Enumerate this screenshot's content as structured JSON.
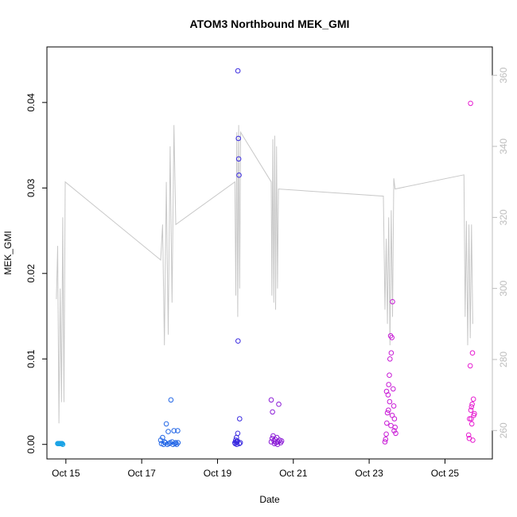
{
  "chart_data": {
    "type": "scatter",
    "title": "ATOM3 Northbound MEK_GMI",
    "xlabel": "Date",
    "ylabel": "MEK_GMI",
    "xlim": [
      "2016-10-14 12:00",
      "2016-10-26 06:00"
    ],
    "ylim": [
      -0.0017,
      0.0465
    ],
    "y2lim": [
      252,
      368
    ],
    "x_ticks": [
      {
        "label": "Oct 15",
        "value": "2016-10-15"
      },
      {
        "label": "Oct 17",
        "value": "2016-10-17"
      },
      {
        "label": "Oct 19",
        "value": "2016-10-19"
      },
      {
        "label": "Oct 21",
        "value": "2016-10-21"
      },
      {
        "label": "Oct 23",
        "value": "2016-10-23"
      },
      {
        "label": "Oct 25",
        "value": "2016-10-25"
      }
    ],
    "y_ticks": [
      "0.00",
      "0.01",
      "0.02",
      "0.03",
      "0.04"
    ],
    "y2_ticks": [
      "260",
      "280",
      "300",
      "320",
      "340",
      "360"
    ],
    "grid": false,
    "legend": "none",
    "colors": {
      "line": "#c8c8c8",
      "axis_right": "#bdbdbd"
    },
    "series": [
      {
        "color": "#1aa3e6",
        "points": [
          [
            "2016-10-14 18:48",
            0.0001
          ],
          [
            "2016-10-14 19:12",
            0.0001
          ],
          [
            "2016-10-14 19:36",
            0.0001
          ],
          [
            "2016-10-14 20:00",
            0.0001
          ],
          [
            "2016-10-14 20:24",
            0.0001
          ],
          [
            "2016-10-14 20:48",
            0.0001
          ],
          [
            "2016-10-14 21:12",
            0.0001
          ],
          [
            "2016-10-14 21:36",
            0.0001
          ],
          [
            "2016-10-14 22:00",
            0.0
          ]
        ]
      },
      {
        "color": "#2266e6",
        "points": [
          [
            "2016-10-17 12:00",
            0.0005
          ],
          [
            "2016-10-17 13:12",
            0.0008
          ],
          [
            "2016-10-17 14:24",
            0.0003
          ],
          [
            "2016-10-17 15:36",
            0.0024
          ],
          [
            "2016-10-17 16:48",
            0.0015
          ],
          [
            "2016-10-17 18:00",
            0.0002
          ],
          [
            "2016-10-17 18:30",
            0.0052
          ],
          [
            "2016-10-17 19:12",
            0.0003
          ],
          [
            "2016-10-17 20:24",
            0.0016
          ],
          [
            "2016-10-17 21:36",
            0.0002
          ],
          [
            "2016-10-17 22:48",
            0.0016
          ],
          [
            "2016-10-17 12:30",
            0.0001
          ],
          [
            "2016-10-17 13:48",
            0.0
          ],
          [
            "2016-10-17 15:00",
            0.0002
          ],
          [
            "2016-10-17 16:12",
            0.0
          ],
          [
            "2016-10-17 17:24",
            0.0001
          ],
          [
            "2016-10-17 19:48",
            0.0
          ],
          [
            "2016-10-17 21:00",
            0.0001
          ],
          [
            "2016-10-17 22:12",
            0.0
          ],
          [
            "2016-10-17 23:00",
            0.0002
          ]
        ]
      },
      {
        "color": "#3a2ae0",
        "points": [
          [
            "2016-10-19 11:00",
            0.0002
          ],
          [
            "2016-10-19 11:30",
            0.0005
          ],
          [
            "2016-10-19 12:00",
            0.0008
          ],
          [
            "2016-10-19 12:24",
            0.0003
          ],
          [
            "2016-10-19 12:48",
            0.0013
          ],
          [
            "2016-10-19 13:00",
            0.0121
          ],
          [
            "2016-10-19 13:12",
            0.0358
          ],
          [
            "2016-10-19 13:24",
            0.0334
          ],
          [
            "2016-10-19 13:36",
            0.0315
          ],
          [
            "2016-10-19 12:54",
            0.0437
          ],
          [
            "2016-10-19 14:00",
            0.003
          ],
          [
            "2016-10-19 14:24",
            0.0002
          ],
          [
            "2016-10-19 11:12",
            0.0001
          ],
          [
            "2016-10-19 11:48",
            0.0003
          ],
          [
            "2016-10-19 12:12",
            0.0
          ],
          [
            "2016-10-19 12:36",
            0.0004
          ],
          [
            "2016-10-19 13:48",
            0.0001
          ]
        ]
      },
      {
        "color": "#8a1ad6",
        "points": [
          [
            "2016-10-20 10:00",
            0.0052
          ],
          [
            "2016-10-20 10:48",
            0.0038
          ],
          [
            "2016-10-20 10:00",
            0.0003
          ],
          [
            "2016-10-20 10:36",
            0.0007
          ],
          [
            "2016-10-20 11:12",
            0.001
          ],
          [
            "2016-10-20 11:48",
            0.0004
          ],
          [
            "2016-10-20 12:24",
            0.0006
          ],
          [
            "2016-10-20 13:00",
            0.0002
          ],
          [
            "2016-10-20 13:36",
            0.0008
          ],
          [
            "2016-10-20 14:12",
            0.0003
          ],
          [
            "2016-10-20 14:48",
            0.0047
          ],
          [
            "2016-10-20 15:24",
            0.0005
          ],
          [
            "2016-10-20 16:00",
            0.0002
          ],
          [
            "2016-10-20 16:36",
            0.0004
          ],
          [
            "2016-10-20 12:00",
            0.0001
          ],
          [
            "2016-10-20 14:00",
            0.0
          ]
        ]
      },
      {
        "color": "#c81ad6",
        "points": [
          [
            "2016-10-23 10:00",
            0.0003
          ],
          [
            "2016-10-23 10:24",
            0.0006
          ],
          [
            "2016-10-23 10:48",
            0.0012
          ],
          [
            "2016-10-23 11:12",
            0.0025
          ],
          [
            "2016-10-23 11:36",
            0.0037
          ],
          [
            "2016-10-23 12:00",
            0.0058
          ],
          [
            "2016-10-23 12:24",
            0.007
          ],
          [
            "2016-10-23 12:48",
            0.0081
          ],
          [
            "2016-10-23 13:12",
            0.01
          ],
          [
            "2016-10-23 13:36",
            0.0127
          ],
          [
            "2016-10-23 14:00",
            0.0107
          ],
          [
            "2016-10-23 14:24",
            0.0125
          ],
          [
            "2016-10-23 14:48",
            0.0167
          ],
          [
            "2016-10-23 15:12",
            0.0065
          ],
          [
            "2016-10-23 15:36",
            0.0045
          ],
          [
            "2016-10-23 16:00",
            0.003
          ],
          [
            "2016-10-23 16:24",
            0.002
          ],
          [
            "2016-10-23 16:48",
            0.0013
          ],
          [
            "2016-10-23 11:00",
            0.0062
          ],
          [
            "2016-10-23 13:00",
            0.005
          ],
          [
            "2016-10-23 14:36",
            0.0034
          ],
          [
            "2016-10-23 15:48",
            0.0016
          ],
          [
            "2016-10-23 12:12",
            0.004
          ],
          [
            "2016-10-23 13:48",
            0.0022
          ]
        ]
      },
      {
        "color": "#e61ad0",
        "points": [
          [
            "2016-10-25 15:00",
            0.0011
          ],
          [
            "2016-10-25 15:36",
            0.003
          ],
          [
            "2016-10-25 16:00",
            0.0092
          ],
          [
            "2016-10-25 16:12",
            0.0399
          ],
          [
            "2016-10-25 16:48",
            0.0044
          ],
          [
            "2016-10-25 17:24",
            0.0107
          ],
          [
            "2016-10-25 18:00",
            0.0053
          ],
          [
            "2016-10-25 18:36",
            0.0036
          ],
          [
            "2016-10-25 15:24",
            0.0007
          ],
          [
            "2016-10-25 16:24",
            0.004
          ],
          [
            "2016-10-25 17:00",
            0.0024
          ],
          [
            "2016-10-25 17:36",
            0.0005
          ],
          [
            "2016-10-25 18:12",
            0.0034
          ],
          [
            "2016-10-25 16:36",
            0.003
          ],
          [
            "2016-10-25 17:12",
            0.0047
          ]
        ]
      }
    ],
    "secondary_line": [
      [
        "2016-10-14 18:00",
        297
      ],
      [
        "2016-10-14 18:48",
        312
      ],
      [
        "2016-10-14 19:36",
        262
      ],
      [
        "2016-10-14 20:24",
        300
      ],
      [
        "2016-10-14 21:12",
        268
      ],
      [
        "2016-10-14 22:00",
        320
      ],
      [
        "2016-10-14 22:48",
        268
      ],
      [
        "2016-10-14 23:36",
        330
      ],
      [
        "2016-10-17 12:00",
        308
      ],
      [
        "2016-10-17 13:12",
        318
      ],
      [
        "2016-10-17 14:24",
        284
      ],
      [
        "2016-10-17 15:36",
        330
      ],
      [
        "2016-10-17 16:48",
        287
      ],
      [
        "2016-10-17 18:00",
        340
      ],
      [
        "2016-10-17 19:12",
        296
      ],
      [
        "2016-10-17 20:24",
        346
      ],
      [
        "2016-10-17 21:36",
        318
      ],
      [
        "2016-10-19 11:00",
        330
      ],
      [
        "2016-10-19 11:36",
        298
      ],
      [
        "2016-10-19 12:12",
        344
      ],
      [
        "2016-10-19 12:48",
        292
      ],
      [
        "2016-10-19 13:24",
        346
      ],
      [
        "2016-10-19 14:00",
        300
      ],
      [
        "2016-10-19 14:36",
        344
      ],
      [
        "2016-10-20 10:00",
        330
      ],
      [
        "2016-10-20 10:24",
        298
      ],
      [
        "2016-10-20 11:00",
        342
      ],
      [
        "2016-10-20 11:36",
        296
      ],
      [
        "2016-10-20 12:12",
        343
      ],
      [
        "2016-10-20 12:48",
        294
      ],
      [
        "2016-10-20 13:24",
        340
      ],
      [
        "2016-10-20 14:00",
        300
      ],
      [
        "2016-10-20 14:36",
        328
      ],
      [
        "2016-10-23 09:00",
        326
      ],
      [
        "2016-10-23 10:00",
        294
      ],
      [
        "2016-10-23 10:48",
        314
      ],
      [
        "2016-10-23 11:36",
        290
      ],
      [
        "2016-10-23 12:24",
        320
      ],
      [
        "2016-10-23 13:12",
        284
      ],
      [
        "2016-10-23 14:00",
        322
      ],
      [
        "2016-10-23 14:48",
        292
      ],
      [
        "2016-10-23 15:36",
        331
      ],
      [
        "2016-10-23 16:24",
        328
      ],
      [
        "2016-10-25 12:00",
        332
      ],
      [
        "2016-10-25 12:48",
        292
      ],
      [
        "2016-10-25 13:36",
        319
      ],
      [
        "2016-10-25 14:24",
        284
      ],
      [
        "2016-10-25 15:12",
        318
      ],
      [
        "2016-10-25 16:00",
        286
      ],
      [
        "2016-10-25 16:48",
        318
      ],
      [
        "2016-10-25 17:36",
        290
      ]
    ]
  }
}
